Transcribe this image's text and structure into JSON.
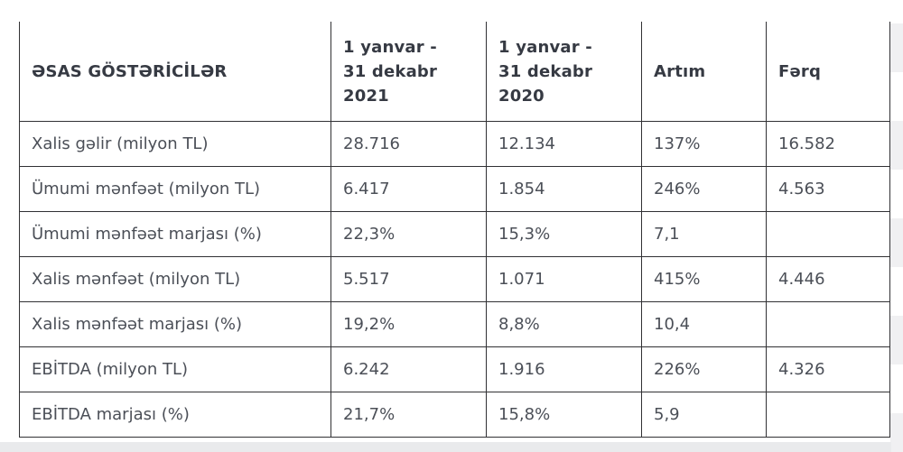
{
  "chart_data": {
    "type": "table",
    "title": "ƏSAS GÖSTƏRİCİLƏR",
    "columns": [
      "ƏSAS GÖSTƏRİCİLƏR",
      "1 yanvar -\n31 dekabr\n2021",
      "1 yanvar -\n31 dekabr\n2020",
      "Artım",
      "Fərq"
    ],
    "rows": [
      [
        "Xalis gəlir (milyon TL)",
        "28.716",
        "12.134",
        "137%",
        "16.582"
      ],
      [
        "Ümumi mənfəət (milyon TL)",
        "6.417",
        "1.854",
        "246%",
        "4.563"
      ],
      [
        "Ümumi mənfəət marjası (%)",
        "22,3%",
        "15,3%",
        "7,1",
        ""
      ],
      [
        "Xalis mənfəət (milyon TL)",
        "5.517",
        "1.071",
        "415%",
        "4.446"
      ],
      [
        "Xalis mənfəət marjası (%)",
        "19,2%",
        "8,8%",
        "10,4",
        ""
      ],
      [
        "EBİTDA (milyon TL)",
        "6.242",
        "1.916",
        "226%",
        "4.326"
      ],
      [
        "EBİTDA marjası (%)",
        "21,7%",
        "15,8%",
        "5,9",
        ""
      ]
    ]
  },
  "colors": {
    "border": "#313134",
    "header_text": "#363a43",
    "body_text": "#4b4f57",
    "edge_stripe_gray": "#f0f0f2",
    "bottom_strip": "#e9eaec",
    "background": "#ffffff"
  }
}
